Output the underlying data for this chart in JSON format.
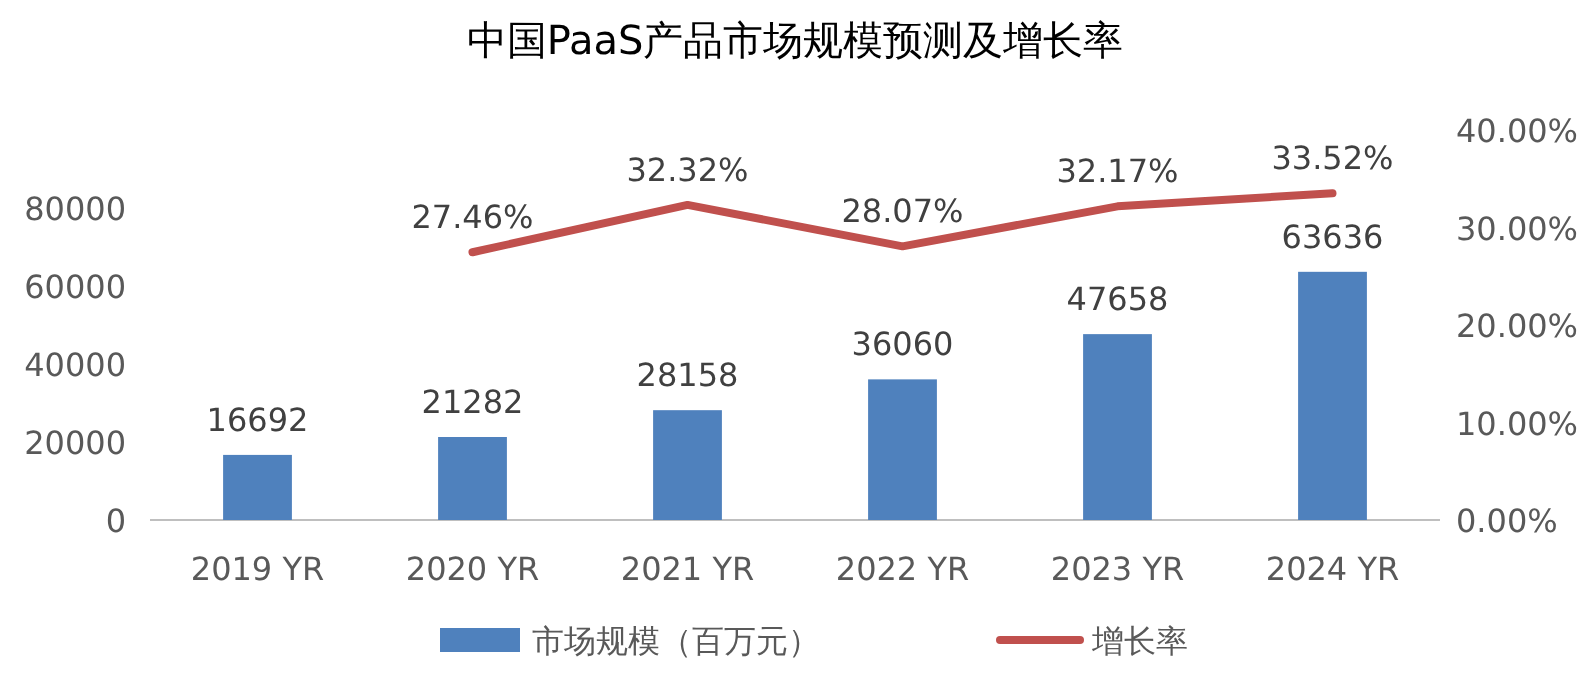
{
  "chart_data": {
    "type": "bar",
    "title": "中国PaaS产品市场规模预测及增长率",
    "categories": [
      "2019 YR",
      "2020 YR",
      "2021 YR",
      "2022 YR",
      "2023 YR",
      "2024 YR"
    ],
    "series": [
      {
        "name": "市场规模（百万元）",
        "color": "#4f81bd",
        "values": [
          16692,
          21282,
          28158,
          36060,
          47658,
          63636
        ],
        "value_labels": [
          "16692",
          "21282",
          "28158",
          "36060",
          "47658",
          "63636"
        ]
      },
      {
        "name": "增长率",
        "type": "line",
        "axis": "y2",
        "color": "#c0504d",
        "values": [
          null,
          27.46,
          32.32,
          28.07,
          32.17,
          33.52
        ],
        "value_labels": [
          null,
          "27.46%",
          "32.32%",
          "28.07%",
          "32.17%",
          "33.52%"
        ]
      }
    ],
    "ylim": [
      0,
      80000
    ],
    "yticks": [
      0,
      20000,
      40000,
      60000,
      80000
    ],
    "y2lim": [
      0,
      40
    ],
    "y2ticks": [
      {
        "value": 0,
        "label": "0.00%"
      },
      {
        "value": 10,
        "label": "10.00%"
      },
      {
        "value": 20,
        "label": "20.00%"
      },
      {
        "value": 30,
        "label": "30.00%"
      },
      {
        "value": 40,
        "label": "40.00%"
      }
    ],
    "grid": false,
    "legend": "bottom",
    "marker": "none",
    "line_style": "solid"
  }
}
